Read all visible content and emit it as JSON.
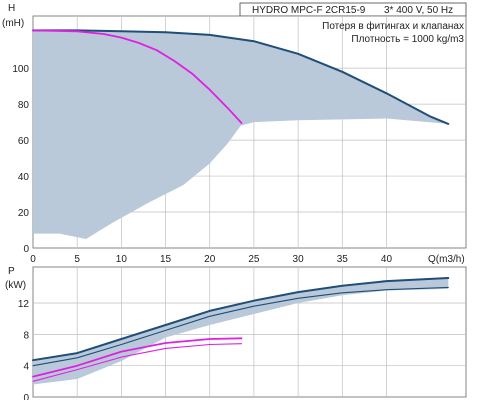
{
  "header": {
    "model": "HYDRO MPC-F 2CR15-9",
    "supply": "3* 400 V, 50 Hz",
    "note_losses": "Потеря в фитингах и клапанах",
    "note_density": "Плотность = 1000 kg/m3"
  },
  "colors": {
    "envelope_fill": "#b9c9d9",
    "max_curve": "#1f4e79",
    "duty_curve": "#e020e0",
    "grid": "#bfbfbf"
  },
  "chart_data": [
    {
      "type": "line",
      "name": "head-chart",
      "ylabel": "H",
      "yunit": "(mH)",
      "xlabel": "Q(m3/h)",
      "xlim": [
        0,
        49
      ],
      "ylim": [
        0,
        129
      ],
      "xticks": [
        "0",
        "5",
        "10",
        "15",
        "20",
        "25",
        "30",
        "35",
        "40"
      ],
      "xtick_values": [
        0,
        5,
        10,
        15,
        20,
        25,
        30,
        35,
        40
      ],
      "yticks": [
        "0",
        "20",
        "40",
        "60",
        "80",
        "100"
      ],
      "ytick_values": [
        0,
        20,
        40,
        60,
        80,
        100
      ],
      "grid": true,
      "envelope": [
        [
          0,
          121
        ],
        [
          8,
          121
        ],
        [
          15,
          120
        ],
        [
          20,
          118.5
        ],
        [
          25,
          115
        ],
        [
          30,
          108
        ],
        [
          35,
          98
        ],
        [
          40,
          86
        ],
        [
          45,
          73
        ],
        [
          47,
          69
        ],
        [
          40,
          72
        ],
        [
          30,
          71
        ],
        [
          25,
          70
        ],
        [
          23.5,
          68
        ],
        [
          22,
          58
        ],
        [
          20,
          47
        ],
        [
          17,
          35
        ],
        [
          13,
          25
        ],
        [
          9,
          14
        ],
        [
          6,
          5
        ],
        [
          3,
          8
        ],
        [
          0,
          8
        ]
      ],
      "series": [
        {
          "role": "max",
          "x": [
            0,
            5,
            10,
            15,
            20,
            25,
            30,
            35,
            40,
            45,
            47
          ],
          "y": [
            121,
            121,
            120.5,
            120,
            118.5,
            115,
            108,
            98,
            86,
            73,
            69
          ]
        },
        {
          "role": "duty",
          "x": [
            0,
            5,
            8,
            10,
            12,
            14,
            16,
            18,
            20,
            22,
            23.6
          ],
          "y": [
            121,
            120.5,
            119,
            117,
            114,
            110,
            104,
            97,
            88,
            78,
            69.5
          ]
        }
      ]
    },
    {
      "type": "line",
      "name": "power-chart",
      "ylabel": "P",
      "yunit": "(kW)",
      "xlim": [
        0,
        49
      ],
      "ylim": [
        0,
        16.6
      ],
      "yticks": [
        "0",
        "4",
        "8",
        "12"
      ],
      "ytick_values": [
        0,
        4,
        8,
        12
      ],
      "grid": true,
      "envelope": [
        [
          0,
          4.7
        ],
        [
          5,
          5.6
        ],
        [
          10,
          7.4
        ],
        [
          15,
          9.2
        ],
        [
          20,
          11
        ],
        [
          25,
          12.3
        ],
        [
          30,
          13.4
        ],
        [
          35,
          14.2
        ],
        [
          40,
          14.8
        ],
        [
          47,
          15.2
        ],
        [
          47,
          13.8
        ],
        [
          40,
          13.6
        ],
        [
          35,
          13
        ],
        [
          30,
          12
        ],
        [
          25,
          10.6
        ],
        [
          20,
          9.2
        ],
        [
          15,
          7.6
        ],
        [
          14,
          7
        ],
        [
          10,
          4.6
        ],
        [
          5,
          2.3
        ],
        [
          0,
          1.6
        ]
      ],
      "series": [
        {
          "role": "max-upper",
          "x": [
            0,
            5,
            10,
            15,
            20,
            25,
            30,
            35,
            40,
            47
          ],
          "y": [
            4.7,
            5.6,
            7.4,
            9.2,
            11,
            12.3,
            13.4,
            14.2,
            14.8,
            15.2
          ]
        },
        {
          "role": "max-lower",
          "x": [
            0,
            5,
            10,
            15,
            20,
            25,
            30,
            35,
            40,
            47
          ],
          "y": [
            4.0,
            5.0,
            6.7,
            8.5,
            10.3,
            11.6,
            12.6,
            13.3,
            13.7,
            14.0
          ]
        },
        {
          "role": "duty-upper",
          "x": [
            0,
            5,
            10,
            15,
            20,
            23.6
          ],
          "y": [
            2.6,
            4.0,
            5.8,
            6.9,
            7.4,
            7.5
          ]
        },
        {
          "role": "duty-lower",
          "x": [
            0,
            5,
            10,
            15,
            20,
            23.6
          ],
          "y": [
            2.0,
            3.5,
            5.1,
            6.2,
            6.7,
            6.8
          ]
        }
      ]
    }
  ]
}
